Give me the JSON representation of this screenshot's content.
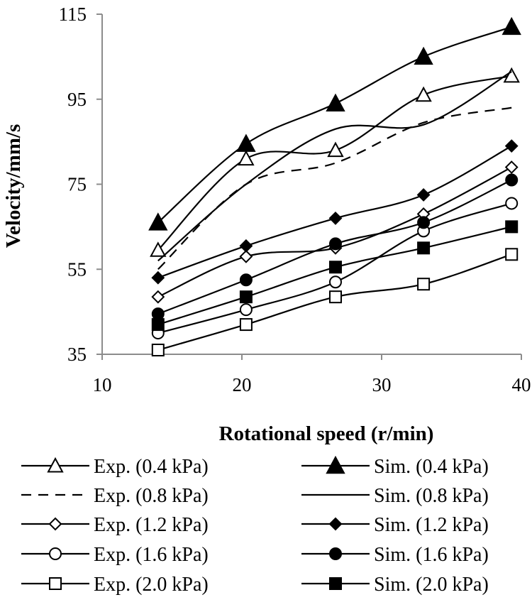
{
  "chart_data": {
    "type": "line",
    "title": "",
    "xlabel": "Rotational speed (r/min)",
    "ylabel": "Velocity/mm/s",
    "xlim": [
      10,
      40
    ],
    "ylim": [
      35,
      115
    ],
    "xticks": [
      10,
      20,
      30,
      40
    ],
    "yticks": [
      35,
      55,
      75,
      95,
      115
    ],
    "x": [
      14,
      20.3,
      26.7,
      33,
      39.3
    ],
    "grid": false,
    "legend_position": "bottom",
    "series": [
      {
        "name": "Exp. (0.4 kPa)",
        "values": [
          59.5,
          81,
          83,
          96,
          100.5
        ],
        "marker": "triangle-open",
        "dash": "solid"
      },
      {
        "name": "Sim. (0.4 kPa)",
        "values": [
          66,
          84.5,
          94,
          105,
          112
        ],
        "marker": "triangle-filled",
        "dash": "solid"
      },
      {
        "name": "Exp. (0.8 kPa)",
        "values": [
          55,
          75,
          80,
          89.5,
          93
        ],
        "marker": "none",
        "dash": "dashed"
      },
      {
        "name": "Sim. (0.8 kPa)",
        "values": [
          57,
          75,
          88,
          89,
          101.5
        ],
        "marker": "none",
        "dash": "solid"
      },
      {
        "name": "Exp. (1.2 kPa)",
        "values": [
          48.5,
          58,
          60,
          68,
          79
        ],
        "marker": "diamond-open",
        "dash": "solid"
      },
      {
        "name": "Sim. (1.2 kPa)",
        "values": [
          53,
          60.5,
          67,
          72.5,
          84
        ],
        "marker": "diamond-filled",
        "dash": "solid"
      },
      {
        "name": "Exp. (1.6 kPa)",
        "values": [
          40,
          45.5,
          52,
          64,
          70.5
        ],
        "marker": "circle-open",
        "dash": "solid"
      },
      {
        "name": "Sim. (1.6 kPa)",
        "values": [
          44.5,
          52.5,
          61,
          66,
          76
        ],
        "marker": "circle-filled",
        "dash": "solid"
      },
      {
        "name": "Exp. (2.0 kPa)",
        "values": [
          36,
          42,
          48.5,
          51.5,
          58.5
        ],
        "marker": "square-open",
        "dash": "solid"
      },
      {
        "name": "Sim. (2.0 kPa)",
        "values": [
          42,
          48.5,
          55.5,
          60,
          65
        ],
        "marker": "square-filled",
        "dash": "solid"
      }
    ]
  }
}
